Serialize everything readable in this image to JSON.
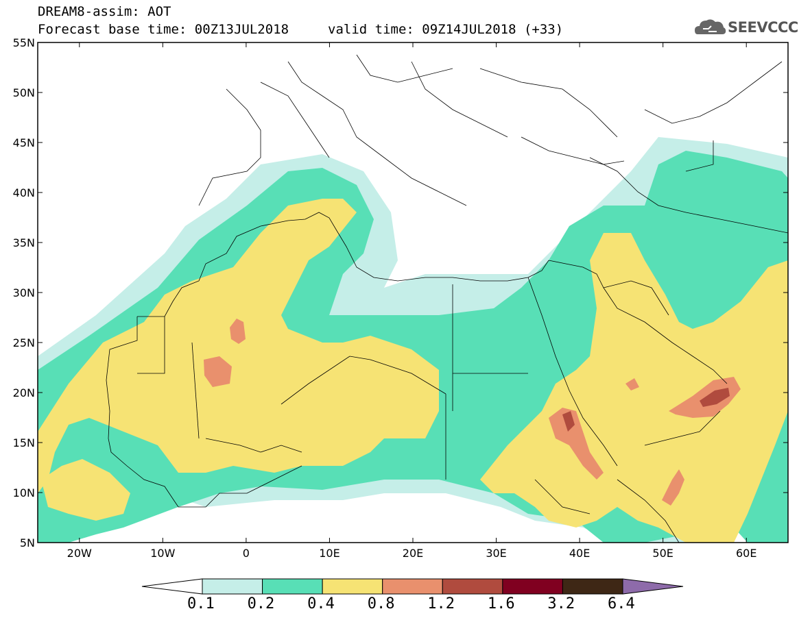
{
  "title": {
    "product": "DREAM8-assim: AOT",
    "base_time": "Forecast base time: 00Z13JUL2018",
    "valid_time": "valid time: 09Z14JUL2018 (+33)"
  },
  "logo": {
    "text": "SEEVCCC",
    "icon": "cloud-icon"
  },
  "map": {
    "lat_labels": [
      "55N",
      "50N",
      "45N",
      "40N",
      "35N",
      "30N",
      "25N",
      "20N",
      "15N",
      "10N",
      "5N"
    ],
    "lon_labels": [
      "20W",
      "10W",
      "0",
      "10E",
      "20E",
      "30E",
      "40E",
      "50E",
      "60E"
    ],
    "extent": {
      "lon": [
        -25,
        65
      ],
      "lat": [
        5,
        55
      ]
    }
  },
  "colorbar": {
    "levels": [
      "0.1",
      "0.2",
      "0.4",
      "0.8",
      "1.2",
      "1.6",
      "3.2",
      "6.4"
    ],
    "colors": [
      "#ffffff",
      "#c5eee8",
      "#58dfb6",
      "#f6e374",
      "#e9906d",
      "#b04b3e",
      "#800020",
      "#3e2715",
      "#8e6baa"
    ]
  }
}
